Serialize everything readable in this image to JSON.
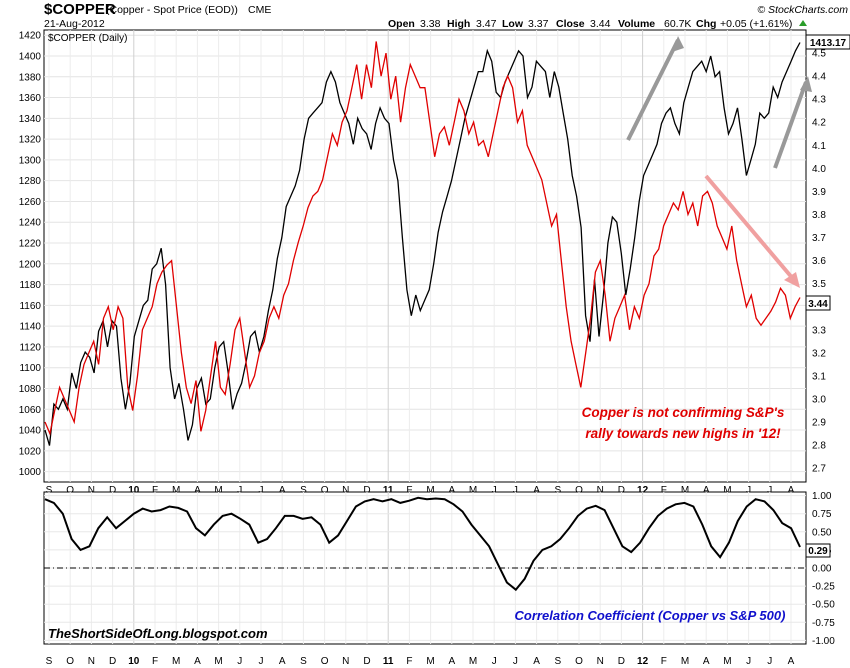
{
  "header": {
    "symbol": "$COPPER",
    "description": "(Copper - Spot Price (EOD))",
    "exchange": "CME",
    "date": "21-Aug-2012",
    "open_label": "Open",
    "open": "3.38",
    "high_label": "High",
    "high": "3.47",
    "low_label": "Low",
    "low": "3.37",
    "close_label": "Close",
    "close": "3.44",
    "volume_label": "Volume",
    "volume": "60.7K",
    "chg_label": "Chg",
    "chg": "+0.05 (+1.61%)",
    "source": "© StockCharts.com"
  },
  "colors": {
    "spx": "#000000",
    "copper": "#e00000",
    "correlation": "#000000",
    "arrow_gray": "#999999",
    "arrow_pink": "#f0a0a0"
  },
  "chart_data": [
    {
      "type": "line",
      "legend": "$COPPER (Daily)",
      "x_labels": [
        "S",
        "O",
        "N",
        "D",
        "10",
        "F",
        "M",
        "A",
        "M",
        "J",
        "J",
        "A",
        "S",
        "O",
        "N",
        "D",
        "11",
        "F",
        "M",
        "A",
        "M",
        "J",
        "J",
        "A",
        "S",
        "O",
        "N",
        "D",
        "12",
        "F",
        "M",
        "A",
        "M",
        "J",
        "J",
        "A"
      ],
      "left_axis": {
        "ticks": [
          1000,
          1020,
          1040,
          1060,
          1080,
          1100,
          1120,
          1140,
          1160,
          1180,
          1200,
          1220,
          1240,
          1260,
          1280,
          1300,
          1320,
          1340,
          1360,
          1380,
          1400,
          1420
        ],
        "range": [
          990,
          1425
        ]
      },
      "right_axis": {
        "ticks": [
          "2.7",
          "2.8",
          "2.9",
          "3.0",
          "3.1",
          "3.2",
          "3.3",
          "3.4",
          "3.5",
          "3.6",
          "3.7",
          "3.8",
          "3.9",
          "4.0",
          "4.1",
          "4.2",
          "4.3",
          "4.4",
          "4.5"
        ],
        "range": [
          2.64,
          4.6
        ]
      },
      "series": [
        {
          "axis": "left",
          "values": [
            1040,
            1025,
            1065,
            1060,
            1070,
            1060,
            1095,
            1080,
            1105,
            1115,
            1110,
            1095,
            1135,
            1145,
            1120,
            1145,
            1140,
            1090,
            1060,
            1085,
            1130,
            1145,
            1160,
            1165,
            1195,
            1200,
            1215,
            1180,
            1100,
            1070,
            1085,
            1060,
            1030,
            1045,
            1080,
            1090,
            1065,
            1070,
            1100,
            1120,
            1125,
            1095,
            1060,
            1075,
            1085,
            1105,
            1130,
            1135,
            1115,
            1130,
            1155,
            1175,
            1205,
            1225,
            1255,
            1265,
            1275,
            1290,
            1320,
            1340,
            1345,
            1350,
            1355,
            1375,
            1385,
            1375,
            1355,
            1345,
            1335,
            1315,
            1340,
            1330,
            1325,
            1310,
            1335,
            1350,
            1340,
            1335,
            1300,
            1280,
            1225,
            1175,
            1150,
            1170,
            1155,
            1165,
            1175,
            1200,
            1230,
            1250,
            1265,
            1280,
            1300,
            1320,
            1340,
            1355,
            1370,
            1385,
            1385,
            1405,
            1395,
            1365,
            1360,
            1375,
            1385,
            1395,
            1405,
            1400,
            1360,
            1370,
            1395,
            1390,
            1385,
            1360,
            1385,
            1370,
            1345,
            1320,
            1285,
            1265,
            1235,
            1150,
            1125,
            1185,
            1130,
            1170,
            1220,
            1245,
            1240,
            1210,
            1170,
            1195,
            1225,
            1260,
            1285,
            1295,
            1305,
            1315,
            1335,
            1345,
            1350,
            1335,
            1325,
            1355,
            1370,
            1385,
            1390,
            1395,
            1385,
            1400,
            1380,
            1385,
            1350,
            1325,
            1335,
            1350,
            1320,
            1285,
            1300,
            1315,
            1345,
            1340,
            1345,
            1370,
            1360,
            1375,
            1385,
            1395,
            1405,
            1413
          ],
          "last_label": "1413.17"
        },
        {
          "axis": "right",
          "values": [
            2.9,
            2.85,
            2.95,
            3.05,
            3.0,
            2.95,
            2.9,
            3.05,
            3.15,
            3.2,
            3.25,
            3.15,
            3.35,
            3.4,
            3.3,
            3.4,
            3.35,
            3.05,
            2.95,
            3.1,
            3.3,
            3.35,
            3.4,
            3.5,
            3.55,
            3.58,
            3.6,
            3.4,
            3.2,
            3.05,
            2.98,
            3.08,
            2.86,
            2.95,
            3.1,
            3.25,
            3.05,
            3.02,
            3.15,
            3.3,
            3.35,
            3.2,
            3.05,
            3.1,
            3.2,
            3.25,
            3.35,
            3.4,
            3.35,
            3.45,
            3.5,
            3.6,
            3.68,
            3.75,
            3.83,
            3.88,
            3.9,
            3.95,
            4.05,
            4.15,
            4.1,
            4.2,
            4.25,
            4.35,
            4.45,
            4.3,
            4.45,
            4.35,
            4.55,
            4.4,
            4.5,
            4.3,
            4.4,
            4.2,
            4.35,
            4.45,
            4.4,
            4.35,
            4.35,
            4.2,
            4.05,
            4.15,
            4.18,
            4.1,
            4.2,
            4.3,
            4.25,
            4.15,
            4.2,
            4.1,
            4.12,
            4.05,
            4.15,
            4.25,
            4.35,
            4.4,
            4.35,
            4.2,
            4.25,
            4.1,
            4.05,
            4.0,
            3.95,
            3.85,
            3.75,
            3.8,
            3.6,
            3.4,
            3.25,
            3.15,
            3.05,
            3.2,
            3.35,
            3.55,
            3.6,
            3.45,
            3.25,
            3.35,
            3.4,
            3.45,
            3.3,
            3.4,
            3.35,
            3.45,
            3.5,
            3.62,
            3.65,
            3.75,
            3.8,
            3.85,
            3.82,
            3.9,
            3.8,
            3.85,
            3.75,
            3.88,
            3.9,
            3.85,
            3.75,
            3.7,
            3.65,
            3.75,
            3.6,
            3.5,
            3.4,
            3.45,
            3.35,
            3.32,
            3.35,
            3.38,
            3.42,
            3.48,
            3.45,
            3.35,
            3.4,
            3.44
          ],
          "last_label": "3.44"
        }
      ],
      "annotation_lines": [
        "Copper is not confirming S&P's",
        "rally towards new highs in '12!"
      ]
    },
    {
      "type": "line",
      "title": "Correlation Coefficient (Copper vs S&P 500)",
      "right_axis": {
        "ticks": [
          "1.00",
          "0.75",
          "0.50",
          "0.25",
          "0.00",
          "-0.25",
          "-0.50",
          "-0.75",
          "-1.00"
        ],
        "range": [
          -1.05,
          1.05
        ]
      },
      "reference_line": 0,
      "series": [
        {
          "values": [
            0.95,
            0.9,
            0.75,
            0.4,
            0.25,
            0.3,
            0.55,
            0.7,
            0.55,
            0.65,
            0.75,
            0.82,
            0.78,
            0.8,
            0.85,
            0.83,
            0.78,
            0.55,
            0.45,
            0.6,
            0.72,
            0.75,
            0.68,
            0.6,
            0.35,
            0.4,
            0.55,
            0.72,
            0.72,
            0.68,
            0.7,
            0.6,
            0.35,
            0.45,
            0.65,
            0.85,
            0.92,
            0.95,
            0.92,
            0.95,
            0.9,
            0.93,
            0.97,
            0.95,
            0.96,
            0.95,
            0.88,
            0.78,
            0.6,
            0.45,
            0.3,
            0.05,
            -0.2,
            -0.3,
            -0.15,
            0.1,
            0.25,
            0.3,
            0.4,
            0.55,
            0.72,
            0.82,
            0.86,
            0.8,
            0.55,
            0.3,
            0.22,
            0.35,
            0.55,
            0.72,
            0.82,
            0.88,
            0.9,
            0.85,
            0.6,
            0.3,
            0.15,
            0.35,
            0.65,
            0.85,
            0.95,
            0.92,
            0.8,
            0.62,
            0.55,
            0.29
          ],
          "last_label": "0.29"
        }
      ],
      "watermark": "TheShortSideOfLong.blogspot.com"
    }
  ]
}
